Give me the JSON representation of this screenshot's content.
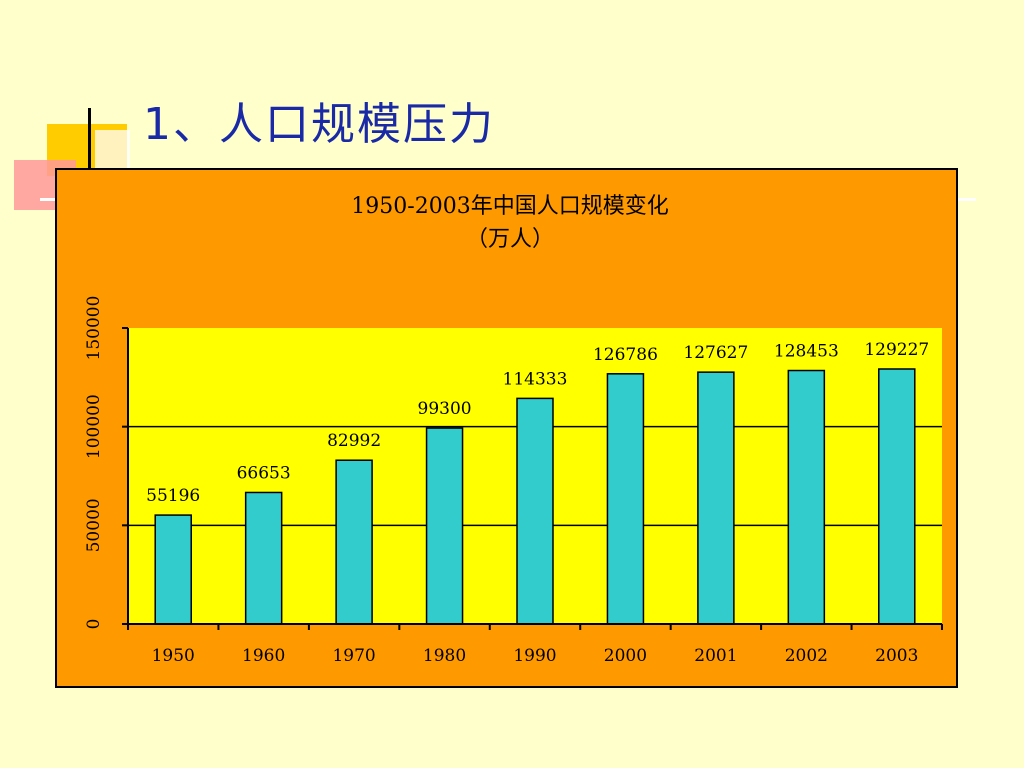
{
  "slide": {
    "title": "1、人口规模压力"
  },
  "colors": {
    "background": "#FFFFCC",
    "chart_frame": "#FF9900",
    "plot_area": "#FFFF00",
    "bar": "#33CCCC",
    "title": "#1A2AA6"
  },
  "chart_data": {
    "type": "bar",
    "title": "1950-2003年中国人口规模变化",
    "subtitle": "（万人）",
    "categories": [
      "1950",
      "1960",
      "1970",
      "1980",
      "1990",
      "2000",
      "2001",
      "2002",
      "2003"
    ],
    "values": [
      55196,
      66653,
      82992,
      99300,
      114333,
      126786,
      127627,
      128453,
      129227
    ],
    "data_labels": [
      "55196",
      "66653",
      "82992",
      "99300",
      "114333",
      "126786",
      "127627",
      "128453",
      "129227"
    ],
    "ylim": [
      0,
      150000
    ],
    "y_ticks": [
      0,
      50000,
      100000,
      150000
    ],
    "y_tick_labels": [
      "0",
      "50000",
      "100000",
      "150000"
    ],
    "xlabel": "",
    "ylabel": "",
    "grid": true,
    "legend": "none"
  }
}
